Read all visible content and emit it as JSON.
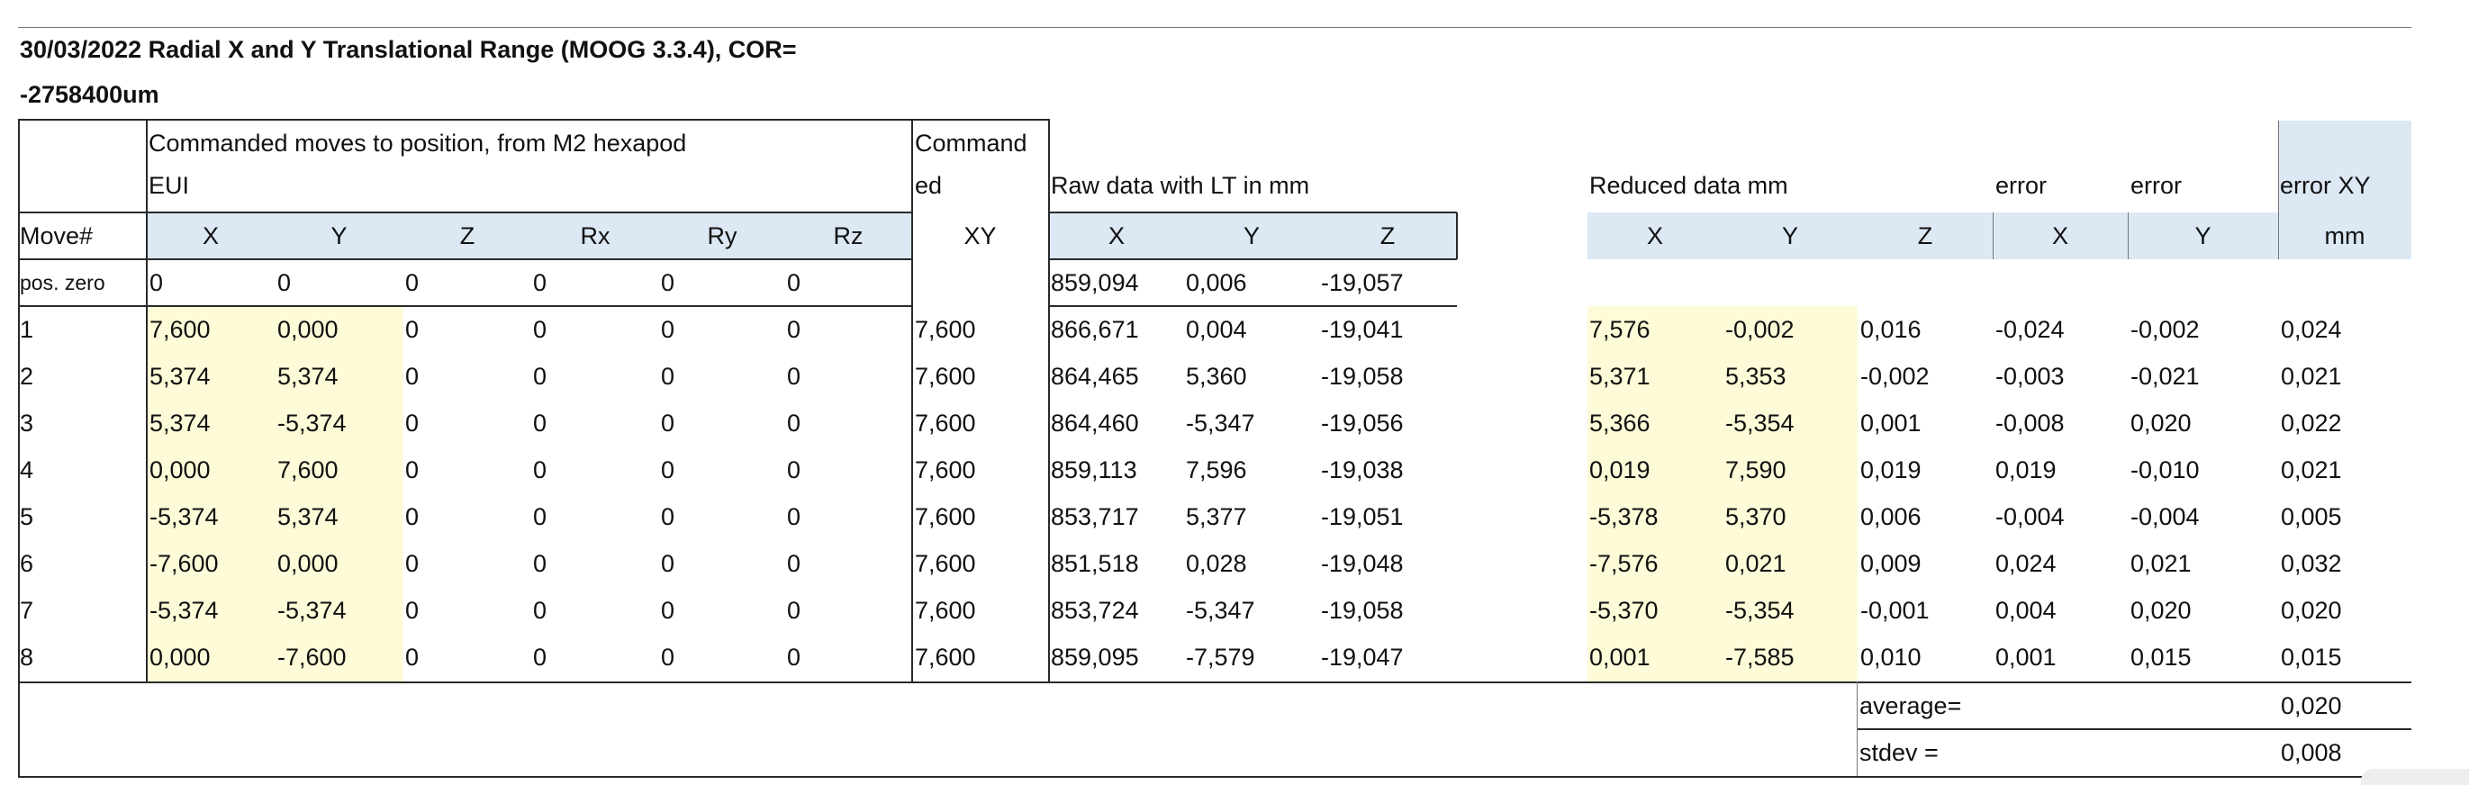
{
  "title_line1": "30/03/2022  Radial X and Y Translational Range (MOOG 3.3.4), COR=",
  "title_line2": "-2758400um",
  "section_commanded_1": "Commanded moves to position, from M2 hexapod",
  "section_commanded_2": "EUI",
  "section_cmdxy_1": "Command",
  "section_cmdxy_2": "ed",
  "section_raw": "Raw data with LT in mm",
  "section_reduced": "Reduced data mm",
  "section_error_x": "error",
  "section_error_y": "error",
  "section_error_xy": "error XY",
  "headers": {
    "move": "Move#",
    "cx": "X",
    "cy": "Y",
    "cz": "Z",
    "crx": "Rx",
    "cry": "Ry",
    "crz": "Rz",
    "cxy": "XY",
    "rx": "X",
    "ry": "Y",
    "rz": "Z",
    "dx": "X",
    "dy": "Y",
    "dz": "Z",
    "ex": "X",
    "ey": "Y",
    "exy": "mm"
  },
  "pos_zero": {
    "label": "pos. zero",
    "cx": "0",
    "cy": "0",
    "cz": "0",
    "crx": "0",
    "cry": "0",
    "crz": "0",
    "rx": "859,094",
    "ry": "0,006",
    "rz": "-19,057"
  },
  "rows": [
    {
      "move": "1",
      "cx": "7,600",
      "cy": "0,000",
      "cz": "0",
      "crx": "0",
      "cry": "0",
      "crz": "0",
      "cxy": "7,600",
      "rx": "866,671",
      "ry": "0,004",
      "rz": "-19,041",
      "dx": "7,576",
      "dy": "-0,002",
      "dz": "0,016",
      "ex": "-0,024",
      "ey": "-0,002",
      "exy": "0,024"
    },
    {
      "move": "2",
      "cx": "5,374",
      "cy": "5,374",
      "cz": "0",
      "crx": "0",
      "cry": "0",
      "crz": "0",
      "cxy": "7,600",
      "rx": "864,465",
      "ry": "5,360",
      "rz": "-19,058",
      "dx": "5,371",
      "dy": "5,353",
      "dz": "-0,002",
      "ex": "-0,003",
      "ey": "-0,021",
      "exy": "0,021"
    },
    {
      "move": "3",
      "cx": "5,374",
      "cy": "-5,374",
      "cz": "0",
      "crx": "0",
      "cry": "0",
      "crz": "0",
      "cxy": "7,600",
      "rx": "864,460",
      "ry": "-5,347",
      "rz": "-19,056",
      "dx": "5,366",
      "dy": "-5,354",
      "dz": "0,001",
      "ex": "-0,008",
      "ey": "0,020",
      "exy": "0,022"
    },
    {
      "move": "4",
      "cx": "0,000",
      "cy": "7,600",
      "cz": "0",
      "crx": "0",
      "cry": "0",
      "crz": "0",
      "cxy": "7,600",
      "rx": "859,113",
      "ry": "7,596",
      "rz": "-19,038",
      "dx": "0,019",
      "dy": "7,590",
      "dz": "0,019",
      "ex": "0,019",
      "ey": "-0,010",
      "exy": "0,021"
    },
    {
      "move": "5",
      "cx": "-5,374",
      "cy": "5,374",
      "cz": "0",
      "crx": "0",
      "cry": "0",
      "crz": "0",
      "cxy": "7,600",
      "rx": "853,717",
      "ry": "5,377",
      "rz": "-19,051",
      "dx": "-5,378",
      "dy": "5,370",
      "dz": "0,006",
      "ex": "-0,004",
      "ey": "-0,004",
      "exy": "0,005"
    },
    {
      "move": "6",
      "cx": "-7,600",
      "cy": "0,000",
      "cz": "0",
      "crx": "0",
      "cry": "0",
      "crz": "0",
      "cxy": "7,600",
      "rx": "851,518",
      "ry": "0,028",
      "rz": "-19,048",
      "dx": "-7,576",
      "dy": "0,021",
      "dz": "0,009",
      "ex": "0,024",
      "ey": "0,021",
      "exy": "0,032"
    },
    {
      "move": "7",
      "cx": "-5,374",
      "cy": "-5,374",
      "cz": "0",
      "crx": "0",
      "cry": "0",
      "crz": "0",
      "cxy": "7,600",
      "rx": "853,724",
      "ry": "-5,347",
      "rz": "-19,058",
      "dx": "-5,370",
      "dy": "-5,354",
      "dz": "-0,001",
      "ex": "0,004",
      "ey": "0,020",
      "exy": "0,020"
    },
    {
      "move": "8",
      "cx": "0,000",
      "cy": "-7,600",
      "cz": "0",
      "crx": "0",
      "cry": "0",
      "crz": "0",
      "cxy": "7,600",
      "rx": "859,095",
      "ry": "-7,579",
      "rz": "-19,047",
      "dx": "0,001",
      "dy": "-7,585",
      "dz": "0,010",
      "ex": "0,001",
      "ey": "0,015",
      "exy": "0,015"
    }
  ],
  "summary": {
    "average_label": "average=",
    "average_value": "0,020",
    "stdev_label": "stdev =",
    "stdev_value": "0,008"
  },
  "colors": {
    "header_blue": "#dce8f4",
    "highlight_yellow": "#fdfbd8"
  }
}
